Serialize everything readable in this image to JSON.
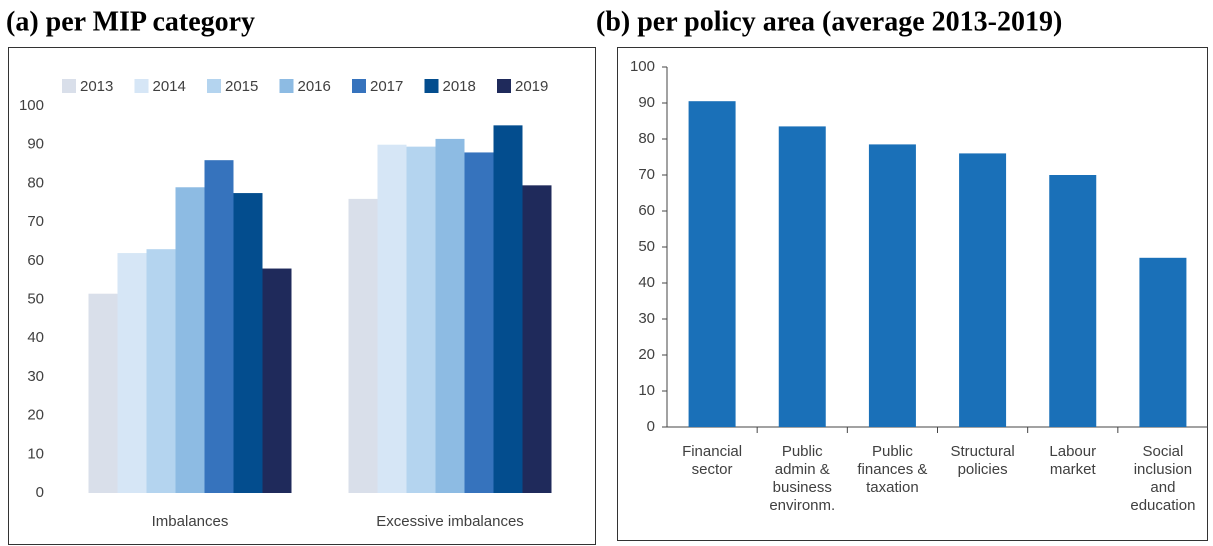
{
  "chart_data": [
    {
      "type": "bar",
      "title": "(a) per MIP category",
      "categories": [
        "Imbalances",
        "Excessive imbalances"
      ],
      "series": [
        {
          "name": "2013",
          "color": "#d9dfea",
          "values": [
            51.5,
            76
          ]
        },
        {
          "name": "2014",
          "color": "#d6e6f6",
          "values": [
            62,
            90
          ]
        },
        {
          "name": "2015",
          "color": "#b4d4ef",
          "values": [
            63,
            89.5
          ]
        },
        {
          "name": "2016",
          "color": "#8dbbe3",
          "values": [
            79,
            91.5
          ]
        },
        {
          "name": "2017",
          "color": "#3673bd",
          "values": [
            86,
            88
          ]
        },
        {
          "name": "2018",
          "color": "#034d8e",
          "values": [
            77.5,
            95
          ]
        },
        {
          "name": "2019",
          "color": "#1f2a5b",
          "values": [
            58,
            79.5
          ]
        }
      ],
      "ylim": [
        0,
        100
      ],
      "yticks": [
        0,
        10,
        20,
        30,
        40,
        50,
        60,
        70,
        80,
        90,
        100
      ],
      "legend": "top",
      "grid": false
    },
    {
      "type": "bar",
      "title": "(b) per policy area (average 2013-2019)",
      "categories": [
        [
          "Financial",
          "sector"
        ],
        [
          "Public",
          "admin &",
          "business",
          "environm."
        ],
        [
          "Public",
          "finances &",
          "taxation"
        ],
        [
          "Structural",
          "policies"
        ],
        [
          "Labour",
          "market"
        ],
        [
          "Social",
          "inclusion",
          "and",
          "education"
        ]
      ],
      "values": [
        90.5,
        83.5,
        78.5,
        76,
        70,
        47
      ],
      "color": "#1a70b8",
      "ylim": [
        0,
        100
      ],
      "yticks": [
        0,
        10,
        20,
        30,
        40,
        50,
        60,
        70,
        80,
        90,
        100
      ],
      "grid": false
    }
  ]
}
